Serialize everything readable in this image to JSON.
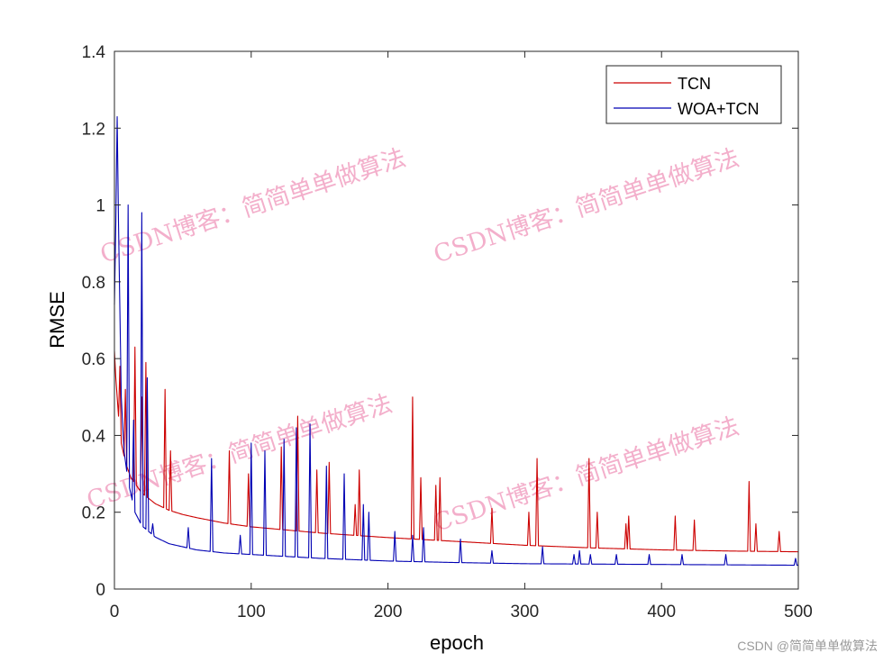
{
  "chart_data": {
    "type": "line",
    "title": "",
    "xlabel": "epoch",
    "ylabel": "RMSE",
    "xlim": [
      0,
      500
    ],
    "ylim": [
      0,
      1.4
    ],
    "xticks": [
      0,
      100,
      200,
      300,
      400,
      500
    ],
    "yticks": [
      0,
      0.2,
      0.4,
      0.6,
      0.8,
      1,
      1.2,
      1.4
    ],
    "xtick_labels": [
      "0",
      "100",
      "200",
      "300",
      "400",
      "500"
    ],
    "ytick_labels": [
      "0",
      "0.2",
      "0.4",
      "0.6",
      "0.8",
      "1",
      "1.2",
      "1.4"
    ],
    "grid": false,
    "legend_position": "top-right",
    "series": [
      {
        "name": "TCN",
        "color": "#cc0000",
        "base": [
          [
            0,
            0.62
          ],
          [
            1,
            0.55
          ],
          [
            3,
            0.45
          ],
          [
            5,
            0.38
          ],
          [
            8,
            0.33
          ],
          [
            12,
            0.29
          ],
          [
            20,
            0.25
          ],
          [
            30,
            0.222
          ],
          [
            40,
            0.205
          ],
          [
            50,
            0.194
          ],
          [
            60,
            0.186
          ],
          [
            80,
            0.172
          ],
          [
            100,
            0.162
          ],
          [
            150,
            0.146
          ],
          [
            200,
            0.134
          ],
          [
            250,
            0.124
          ],
          [
            300,
            0.114
          ],
          [
            350,
            0.107
          ],
          [
            400,
            0.102
          ],
          [
            450,
            0.099
          ],
          [
            500,
            0.097
          ]
        ],
        "spikes": [
          [
            4,
            0.58
          ],
          [
            8,
            0.52
          ],
          [
            15,
            0.63
          ],
          [
            20,
            0.5
          ],
          [
            23,
            0.59
          ],
          [
            37,
            0.52
          ],
          [
            41,
            0.36
          ],
          [
            84,
            0.36
          ],
          [
            98,
            0.3
          ],
          [
            122,
            0.37
          ],
          [
            134,
            0.45
          ],
          [
            148,
            0.31
          ],
          [
            157,
            0.33
          ],
          [
            176,
            0.22
          ],
          [
            179,
            0.31
          ],
          [
            218,
            0.5
          ],
          [
            224,
            0.29
          ],
          [
            235,
            0.27
          ],
          [
            238,
            0.29
          ],
          [
            276,
            0.21
          ],
          [
            303,
            0.2
          ],
          [
            309,
            0.34
          ],
          [
            347,
            0.34
          ],
          [
            353,
            0.2
          ],
          [
            374,
            0.17
          ],
          [
            376,
            0.19
          ],
          [
            410,
            0.19
          ],
          [
            424,
            0.18
          ],
          [
            464,
            0.28
          ],
          [
            469,
            0.17
          ],
          [
            486,
            0.15
          ]
        ]
      },
      {
        "name": "WOA+TCN",
        "color": "#0000b3",
        "base": [
          [
            0,
            0.74
          ],
          [
            1,
            0.95
          ],
          [
            2,
            1.23
          ],
          [
            3,
            0.95
          ],
          [
            5,
            0.5
          ],
          [
            7,
            0.36
          ],
          [
            10,
            0.28
          ],
          [
            15,
            0.2
          ],
          [
            20,
            0.165
          ],
          [
            30,
            0.135
          ],
          [
            40,
            0.118
          ],
          [
            60,
            0.102
          ],
          [
            80,
            0.094
          ],
          [
            100,
            0.09
          ],
          [
            150,
            0.08
          ],
          [
            200,
            0.073
          ],
          [
            250,
            0.069
          ],
          [
            300,
            0.066
          ],
          [
            400,
            0.064
          ],
          [
            500,
            0.062
          ]
        ],
        "spikes": [
          [
            6,
            0.34
          ],
          [
            10,
            1.0
          ],
          [
            14,
            0.44
          ],
          [
            20,
            0.98
          ],
          [
            24,
            0.55
          ],
          [
            28,
            0.17
          ],
          [
            54,
            0.16
          ],
          [
            71,
            0.34
          ],
          [
            92,
            0.14
          ],
          [
            100,
            0.38
          ],
          [
            110,
            0.36
          ],
          [
            124,
            0.39
          ],
          [
            133,
            0.42
          ],
          [
            143,
            0.43
          ],
          [
            155,
            0.32
          ],
          [
            168,
            0.3
          ],
          [
            182,
            0.22
          ],
          [
            186,
            0.2
          ],
          [
            205,
            0.15
          ],
          [
            218,
            0.14
          ],
          [
            226,
            0.16
          ],
          [
            253,
            0.13
          ],
          [
            276,
            0.1
          ],
          [
            313,
            0.11
          ],
          [
            336,
            0.09
          ],
          [
            340,
            0.1
          ],
          [
            348,
            0.09
          ],
          [
            367,
            0.09
          ],
          [
            391,
            0.09
          ],
          [
            415,
            0.09
          ],
          [
            447,
            0.09
          ],
          [
            498,
            0.08
          ]
        ]
      }
    ],
    "watermark_text": "CSDN博客：简简单单做算法"
  },
  "credit_text": "CSDN @简简单单做算法"
}
